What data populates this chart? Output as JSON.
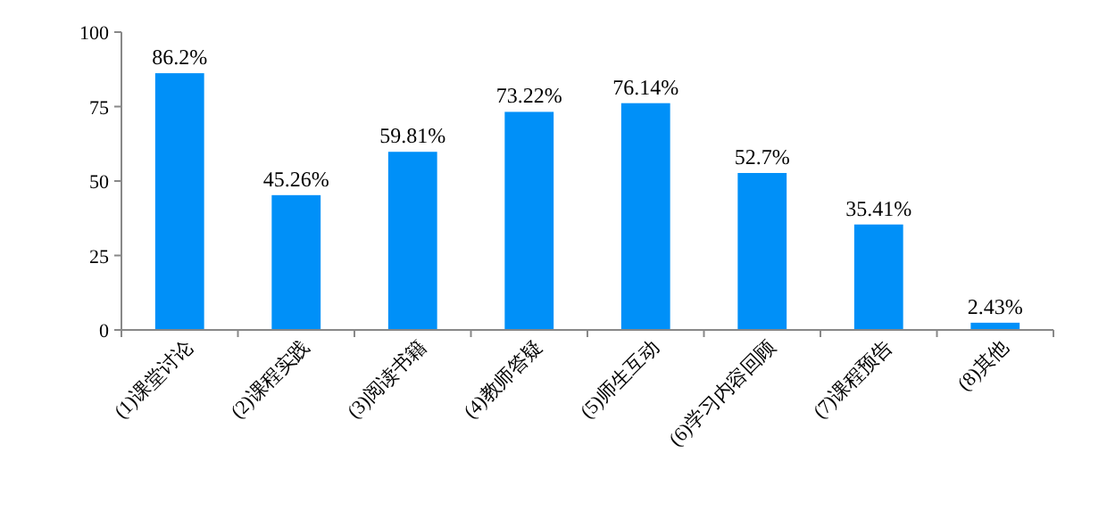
{
  "chart_data": {
    "type": "bar",
    "categories": [
      "(1)课堂讨论",
      "(2)课程实践",
      "(3)阅读书籍",
      "(4)教师答疑",
      "(5)师生互动",
      "(6)学习内容回顾",
      "(7)课程预告",
      "(8)其他"
    ],
    "values": [
      86.2,
      45.26,
      59.81,
      73.22,
      76.14,
      52.7,
      35.41,
      2.43
    ],
    "value_labels": [
      "86.2%",
      "45.26%",
      "59.81%",
      "73.22%",
      "76.14%",
      "52.7%",
      "35.41%",
      "2.43%"
    ],
    "color": "#0090f8",
    "ylim": [
      0,
      100
    ],
    "yticks": [
      0,
      25,
      50,
      75,
      100
    ],
    "grid": false
  }
}
